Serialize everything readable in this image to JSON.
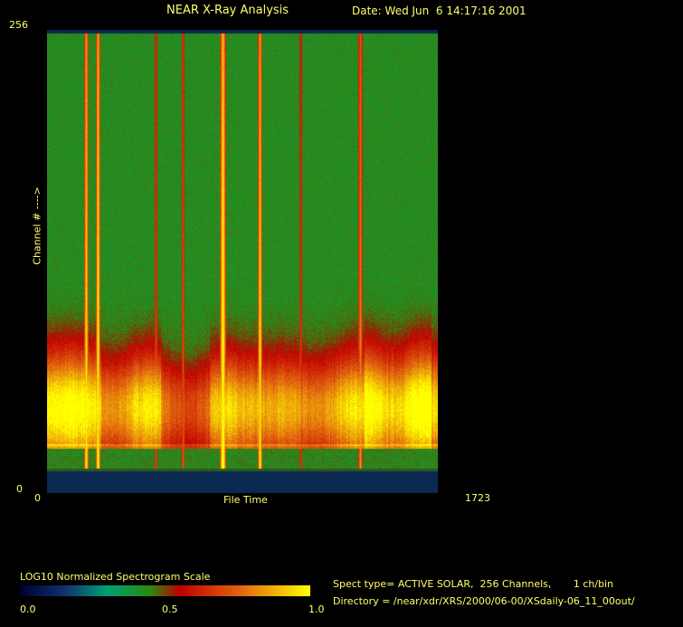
{
  "header": {
    "title": "NEAR X-Ray Analysis",
    "date": "Date: Wed Jun  6 14:17:16 2001"
  },
  "chart_data": {
    "type": "heatmap",
    "title": "NEAR X-Ray Analysis",
    "xlabel": "File Time",
    "ylabel": "Channel # ---->",
    "xlim": [
      0,
      1723
    ],
    "ylim": [
      0,
      256
    ],
    "x_tick_labels": [
      "0",
      "1723"
    ],
    "y_tick_labels": [
      "0",
      "256"
    ],
    "colorbar": {
      "label": "LOG10 Normalized Spectrogram Scale",
      "range": [
        0.0,
        1.0
      ],
      "tick_labels": [
        "0.0",
        "0.5",
        "1.0"
      ],
      "colors": [
        "#000030",
        "#103070",
        "#00a070",
        "#2a8a12",
        "#c00000",
        "#e06010",
        "#ffff00"
      ]
    }
  },
  "info": {
    "spect_type": "Spect type= ACTIVE SOLAR,  256 Channels,       1 ch/bin",
    "directory": "Directory = /near/xdr/XRS/2000/06-00/XSdaily-06_11_00out/"
  }
}
